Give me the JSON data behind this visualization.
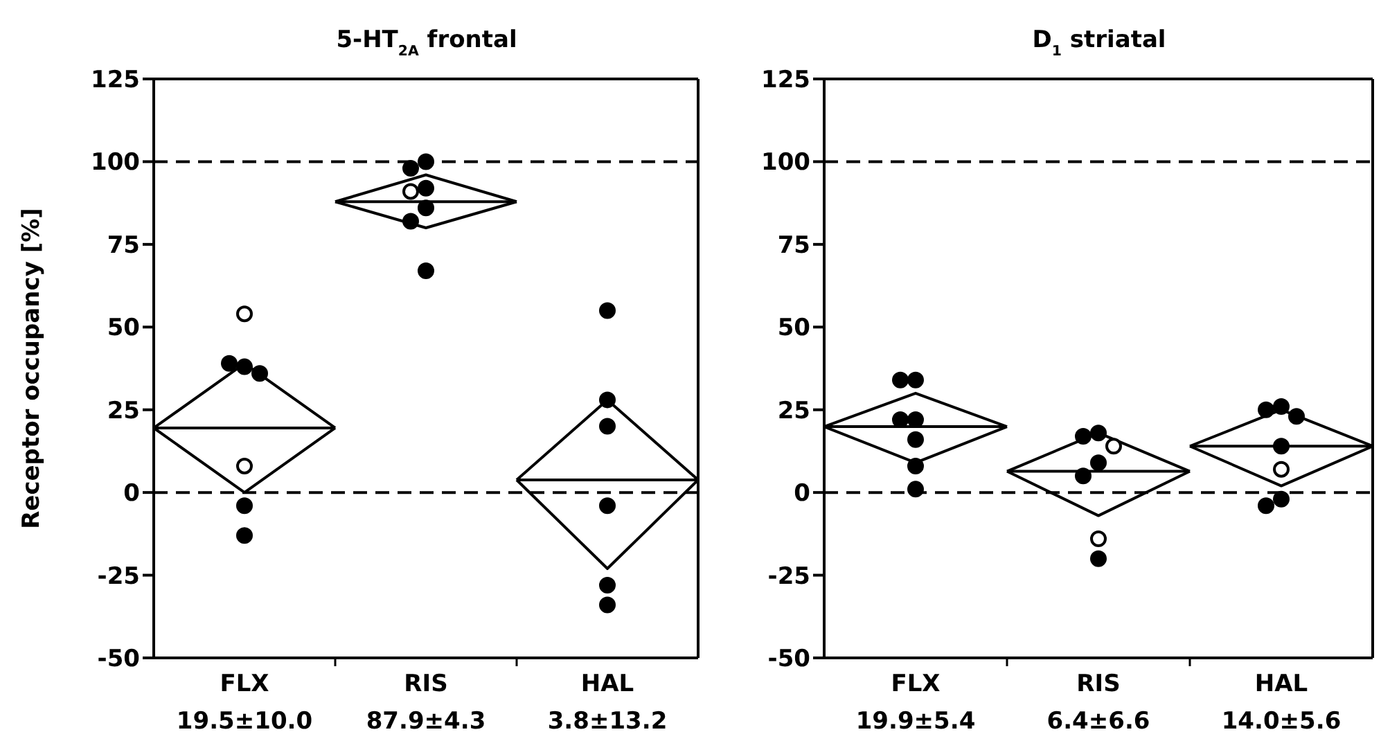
{
  "chart_data": [
    {
      "type": "scatter",
      "title": "5-HT$_{2A}$ frontal",
      "ylabel": "Receptor occupancy [%]",
      "categories": [
        null,
        "FLX\n19.5±10.0",
        null,
        "RIS\n87.9±4.3",
        null,
        "HAL\n3.8±13.2",
        null
      ],
      "ylim": [
        -50,
        125
      ],
      "yticks": [
        -50,
        -25,
        0,
        25,
        50,
        75,
        100,
        125
      ],
      "grid": false,
      "ref_lines": [
        {
          "axis": "y",
          "value": 0,
          "line_style": "dashed"
        },
        {
          "axis": "y",
          "value": 100,
          "line_style": "dashed"
        }
      ],
      "series": [
        {
          "type": "line",
          "marker": "none",
          "color": "#000000",
          "values": [
            19.5,
            39,
            19.5,
            null,
            null,
            null,
            null
          ]
        },
        {
          "type": "line",
          "marker": "none",
          "color": "#000000",
          "values": [
            19.5,
            0,
            19.5,
            null,
            null,
            null,
            null
          ]
        },
        {
          "type": "line",
          "marker": "none",
          "color": "#000000",
          "values": [
            19.5,
            19.5,
            19.5,
            null,
            null,
            null,
            null
          ]
        },
        {
          "type": "line",
          "marker": "none",
          "color": "#000000",
          "values": [
            null,
            null,
            87.9,
            96,
            87.9,
            null,
            null
          ]
        },
        {
          "type": "line",
          "marker": "none",
          "color": "#000000",
          "values": [
            null,
            null,
            87.9,
            80,
            87.9,
            null,
            null
          ]
        },
        {
          "type": "line",
          "marker": "none",
          "color": "#000000",
          "values": [
            null,
            null,
            87.9,
            87.9,
            87.9,
            null,
            null
          ]
        },
        {
          "type": "line",
          "marker": "none",
          "color": "#000000",
          "values": [
            null,
            null,
            null,
            null,
            3.8,
            28,
            3.8
          ]
        },
        {
          "type": "line",
          "marker": "none",
          "color": "#000000",
          "values": [
            null,
            null,
            null,
            null,
            3.8,
            -23,
            3.8
          ]
        },
        {
          "type": "line",
          "marker": "none",
          "color": "#000000",
          "values": [
            null,
            null,
            null,
            null,
            3.8,
            3.8,
            3.8
          ]
        },
        {
          "marker": "circle",
          "color": "#000000",
          "x": [
            "FLX\n19.5±10.0",
            "FLX\n19.5±10.0",
            "FLX\n19.5±10.0",
            "FLX\n19.5±10.0",
            "FLX\n19.5±10.0",
            "RIS\n87.9±4.3",
            "RIS\n87.9±4.3",
            "RIS\n87.9±4.3",
            "RIS\n87.9±4.3",
            "RIS\n87.9±4.3",
            "RIS\n87.9±4.3",
            "HAL\n3.8±13.2",
            "HAL\n3.8±13.2",
            "HAL\n3.8±13.2",
            "HAL\n3.8±13.2",
            "HAL\n3.8±13.2",
            "HAL\n3.8±13.2"
          ],
          "values": [
            38,
            39,
            36,
            -4,
            -13,
            100,
            98,
            92,
            86,
            82,
            67,
            55,
            28,
            20,
            -4,
            -28,
            -34
          ]
        },
        {
          "marker": "circle",
          "color": "#ffffff",
          "x": [
            "FLX\n19.5±10.0",
            "FLX\n19.5±10.0",
            "RIS\n87.9±4.3"
          ],
          "values": [
            54,
            8,
            91
          ]
        }
      ]
    },
    {
      "type": "scatter",
      "title": "D$_{1}$ striatal",
      "categories": [
        null,
        "FLX\n19.9±5.4",
        null,
        "RIS\n6.4±6.6",
        null,
        "HAL\n14.0±5.6",
        null
      ],
      "ylim": [
        -50,
        125
      ],
      "yticks": [
        -50,
        -25,
        0,
        25,
        50,
        75,
        100,
        125
      ],
      "grid": false,
      "ref_lines": [
        {
          "axis": "y",
          "value": 0,
          "line_style": "dashed"
        },
        {
          "axis": "y",
          "value": 100,
          "line_style": "dashed"
        }
      ],
      "series": [
        {
          "type": "line",
          "marker": "none",
          "color": "#000000",
          "values": [
            19.9,
            30,
            19.9,
            null,
            null,
            null,
            null
          ]
        },
        {
          "type": "line",
          "marker": "none",
          "color": "#000000",
          "values": [
            19.9,
            9,
            19.9,
            null,
            null,
            null,
            null
          ]
        },
        {
          "type": "line",
          "marker": "none",
          "color": "#000000",
          "values": [
            19.9,
            19.9,
            19.9,
            null,
            null,
            null,
            null
          ]
        },
        {
          "type": "line",
          "marker": "none",
          "color": "#000000",
          "values": [
            null,
            null,
            6.4,
            18,
            6.4,
            null,
            null
          ]
        },
        {
          "type": "line",
          "marker": "none",
          "color": "#000000",
          "values": [
            null,
            null,
            6.4,
            -7,
            6.4,
            null,
            null
          ]
        },
        {
          "type": "line",
          "marker": "none",
          "color": "#000000",
          "values": [
            null,
            null,
            6.4,
            6.4,
            6.4,
            null,
            null
          ]
        },
        {
          "type": "line",
          "marker": "none",
          "color": "#000000",
          "values": [
            null,
            null,
            null,
            null,
            14.0,
            25,
            14.0
          ]
        },
        {
          "type": "line",
          "marker": "none",
          "color": "#000000",
          "values": [
            null,
            null,
            null,
            null,
            14.0,
            2,
            14.0
          ]
        },
        {
          "type": "line",
          "marker": "none",
          "color": "#000000",
          "values": [
            null,
            null,
            null,
            null,
            14.0,
            14.0,
            14.0
          ]
        },
        {
          "marker": "circle",
          "color": "#000000",
          "x": [
            "FLX\n19.9±5.4",
            "FLX\n19.9±5.4",
            "FLX\n19.9±5.4",
            "FLX\n19.9±5.4",
            "FLX\n19.9±5.4",
            "FLX\n19.9±5.4",
            "FLX\n19.9±5.4",
            "RIS\n6.4±6.6",
            "RIS\n6.4±6.6",
            "RIS\n6.4±6.6",
            "RIS\n6.4±6.6",
            "RIS\n6.4±6.6",
            "HAL\n14.0±5.6",
            "HAL\n14.0±5.6",
            "HAL\n14.0±5.6",
            "HAL\n14.0±5.6",
            "HAL\n14.0±5.6",
            "HAL\n14.0±5.6"
          ],
          "values": [
            34,
            34,
            22,
            22,
            16,
            8,
            1,
            18,
            17,
            9,
            5,
            -20,
            26,
            25,
            23,
            14,
            -2,
            -4
          ]
        },
        {
          "marker": "circle",
          "color": "#ffffff",
          "x": [
            "RIS\n6.4±6.6",
            "RIS\n6.4±6.6",
            "HAL\n14.0±5.6"
          ],
          "values": [
            14,
            -14,
            7
          ]
        }
      ]
    }
  ]
}
